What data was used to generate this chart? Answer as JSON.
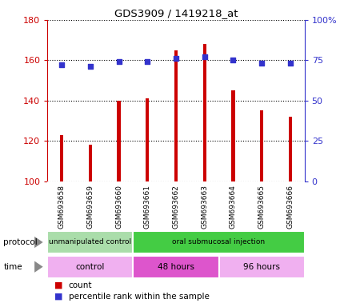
{
  "title": "GDS3909 / 1419218_at",
  "samples": [
    "GSM693658",
    "GSM693659",
    "GSM693660",
    "GSM693661",
    "GSM693662",
    "GSM693663",
    "GSM693664",
    "GSM693665",
    "GSM693666"
  ],
  "counts": [
    123,
    118,
    140,
    141,
    165,
    168,
    145,
    135,
    132
  ],
  "percentile_ranks": [
    72,
    71,
    74,
    74,
    76,
    77,
    75,
    73,
    73
  ],
  "ylim_left": [
    100,
    180
  ],
  "ylim_right": [
    0,
    100
  ],
  "yticks_left": [
    100,
    120,
    140,
    160,
    180
  ],
  "yticks_right": [
    0,
    25,
    50,
    75,
    100
  ],
  "ytick_labels_right": [
    "0",
    "25",
    "50",
    "75",
    "100%"
  ],
  "bar_color": "#cc0000",
  "dot_color": "#3333cc",
  "grid_color": "#000000",
  "protocol_groups": [
    {
      "label": "unmanipulated control",
      "start": 0,
      "end": 3,
      "color": "#aaddaa"
    },
    {
      "label": "oral submucosal injection",
      "start": 3,
      "end": 9,
      "color": "#44cc44"
    }
  ],
  "time_groups": [
    {
      "label": "control",
      "start": 0,
      "end": 3,
      "color": "#f0b0f0"
    },
    {
      "label": "48 hours",
      "start": 3,
      "end": 6,
      "color": "#dd55cc"
    },
    {
      "label": "96 hours",
      "start": 6,
      "end": 9,
      "color": "#f0b0f0"
    }
  ],
  "xlabel_color": "#cc0000",
  "ylabel_right_color": "#3333cc",
  "background_color": "#ffffff",
  "label_area_bg": "#cccccc",
  "bar_width": 0.12
}
